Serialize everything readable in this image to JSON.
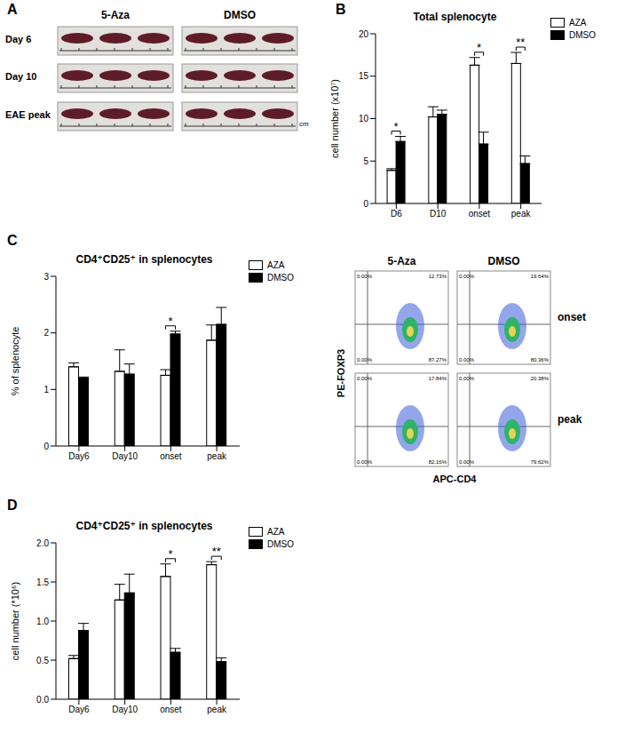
{
  "panel_labels": [
    "A",
    "B",
    "C",
    "D"
  ],
  "spleen_photos": {
    "columns": [
      "5-Aza",
      "DMSO"
    ],
    "rows": [
      "Day 6",
      "Day 10",
      "EAE peak"
    ],
    "scale_unit": "cm"
  },
  "chart_data": [
    {
      "type": "bar",
      "title": "Total splenocyte",
      "y_label": "cell number (x10⁷)",
      "categories": [
        "D6",
        "D10",
        "onset",
        "peak"
      ],
      "series": [
        {
          "name": "AZA",
          "color": "#ffffff",
          "values": [
            3.9,
            10.2,
            16.3,
            16.5
          ],
          "errors": [
            0.2,
            1.2,
            0.9,
            1.3
          ]
        },
        {
          "name": "DMSO",
          "color": "#000000",
          "values": [
            7.3,
            10.5,
            7.0,
            4.7
          ],
          "errors": [
            0.6,
            0.5,
            1.4,
            0.9
          ]
        }
      ],
      "ylim": [
        0,
        20
      ],
      "yticks": [
        0,
        5,
        10,
        15,
        20
      ],
      "annotations": [
        "*",
        null,
        "*",
        "**"
      ],
      "legend": "right"
    },
    {
      "type": "bar",
      "title": "CD4⁺CD25⁺ in splenocytes",
      "y_label": "% of splenocyte",
      "categories": [
        "Day6",
        "Day10",
        "onset",
        "peak"
      ],
      "series": [
        {
          "name": "AZA",
          "color": "#ffffff",
          "values": [
            1.4,
            1.32,
            1.25,
            1.87
          ],
          "errors": [
            0.07,
            0.38,
            0.1,
            0.27
          ]
        },
        {
          "name": "DMSO",
          "color": "#000000",
          "values": [
            1.2,
            1.27,
            1.98,
            2.15
          ],
          "errors": [
            0.02,
            0.18,
            0.05,
            0.3
          ]
        }
      ],
      "ylim": [
        0,
        3
      ],
      "yticks": [
        0,
        1,
        2,
        3
      ],
      "annotations": [
        null,
        null,
        "*",
        null
      ],
      "legend": "right"
    },
    {
      "type": "bar",
      "title": "CD4⁺CD25⁺ in splenocytes",
      "y_label": "cell number (*10⁶)",
      "categories": [
        "Day6",
        "Day10",
        "onset",
        "peak"
      ],
      "series": [
        {
          "name": "AZA",
          "color": "#ffffff",
          "values": [
            0.52,
            1.27,
            1.57,
            1.72
          ],
          "errors": [
            0.04,
            0.2,
            0.16,
            0.04
          ]
        },
        {
          "name": "DMSO",
          "color": "#000000",
          "values": [
            0.88,
            1.36,
            0.6,
            0.48
          ],
          "errors": [
            0.09,
            0.24,
            0.05,
            0.05
          ]
        }
      ],
      "ylim": [
        0,
        2
      ],
      "yticks": [
        {
          "value": 0,
          "label": "0.0"
        },
        {
          "value": 0.5,
          "label": "0.5"
        },
        {
          "value": 1,
          "label": "1.0"
        },
        {
          "value": 1.5,
          "label": "1.5"
        },
        {
          "value": 2,
          "label": "2.0"
        }
      ],
      "annotations": [
        null,
        null,
        "*",
        "**"
      ],
      "legend": "right"
    }
  ],
  "flow_plots": {
    "columns": [
      "5-Aza",
      "DMSO"
    ],
    "rows": [
      "onset",
      "peak"
    ],
    "x_label": "APC-CD4",
    "y_label": "PE-FOXP3",
    "quadrant_labels": [
      [
        [
          "0.00%",
          "12.73%",
          "0.00%",
          "87.27%"
        ],
        [
          "0.00%",
          "19.64%",
          "0.00%",
          "80.36%"
        ]
      ],
      [
        [
          "0.00%",
          "17.84%",
          "0.00%",
          "82.16%"
        ],
        [
          "0.00%",
          "20.38%",
          "0.00%",
          "79.62%"
        ]
      ]
    ]
  }
}
